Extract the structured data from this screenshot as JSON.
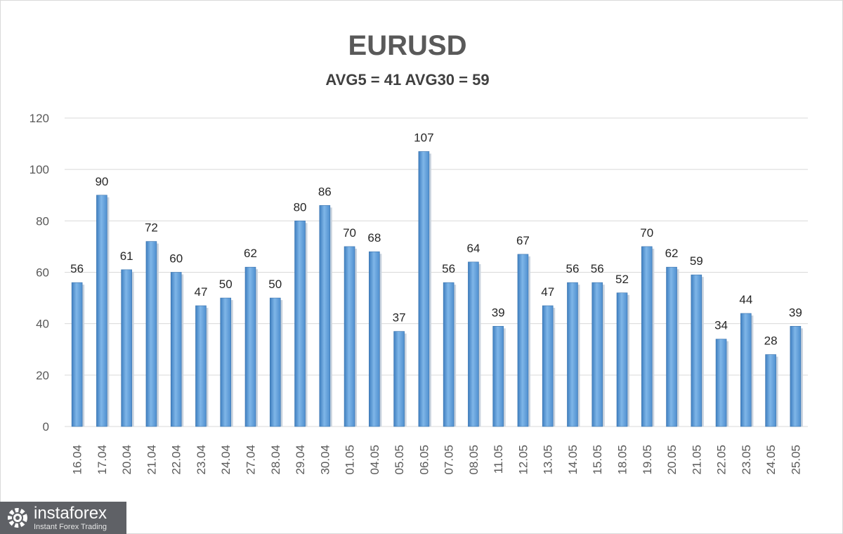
{
  "chart_data": {
    "type": "bar",
    "title": "EURUSD",
    "subtitle": "AVG5 = 41 AVG30 = 59",
    "categories": [
      "16.04",
      "17.04",
      "20.04",
      "21.04",
      "22.04",
      "23.04",
      "24.04",
      "27.04",
      "28.04",
      "29.04",
      "30.04",
      "01.05",
      "04.05",
      "05.05",
      "06.05",
      "07.05",
      "08.05",
      "11.05",
      "12.05",
      "13.05",
      "14.05",
      "15.05",
      "18.05",
      "19.05",
      "20.05",
      "21.05",
      "22.05",
      "23.05",
      "24.05",
      "25.05"
    ],
    "values": [
      56,
      90,
      61,
      72,
      60,
      47,
      50,
      62,
      50,
      80,
      86,
      70,
      68,
      37,
      107,
      56,
      64,
      39,
      67,
      47,
      56,
      56,
      52,
      70,
      62,
      59,
      34,
      44,
      28,
      39
    ],
    "ylim": [
      0,
      120
    ],
    "yticks": [
      0,
      20,
      40,
      60,
      80,
      100,
      120
    ],
    "grid": true,
    "legend": "none",
    "bar_color": "#5b9bd5"
  },
  "watermark": {
    "name": "instaforex",
    "tagline": "Instant Forex Trading"
  }
}
